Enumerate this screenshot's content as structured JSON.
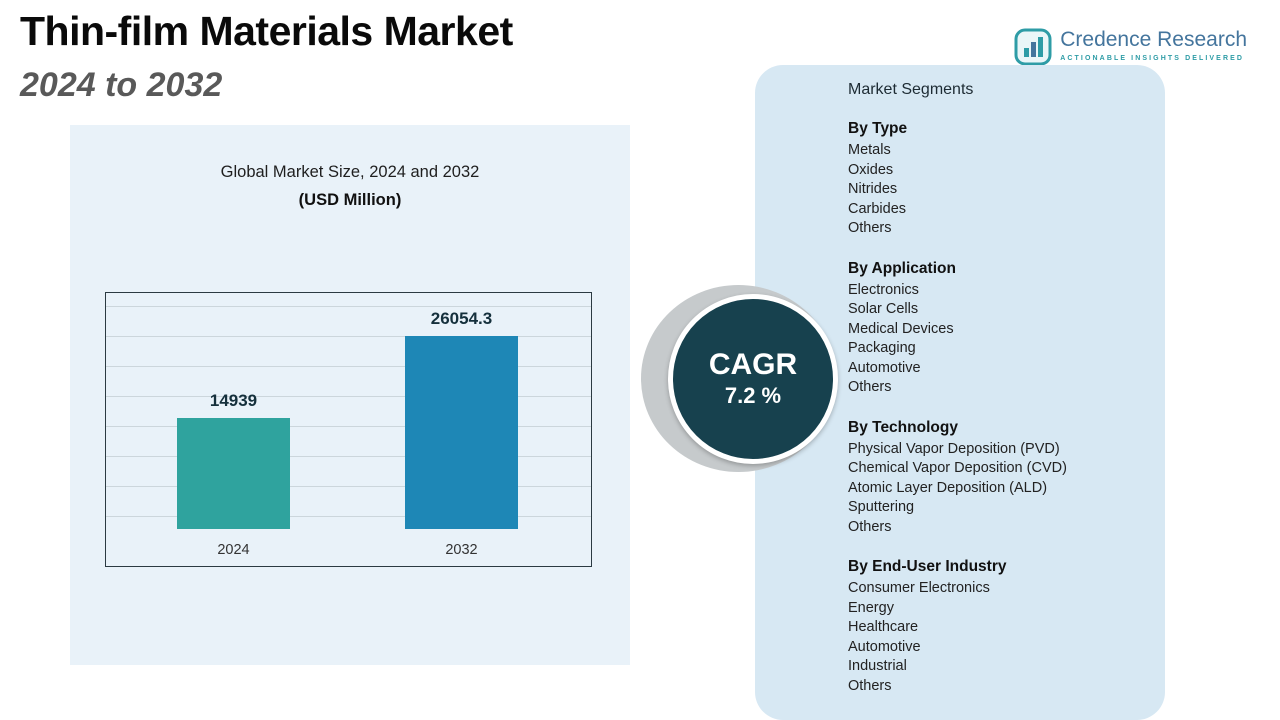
{
  "header": {
    "title": "Thin-film Materials Market",
    "subtitle": "2024 to 2032"
  },
  "logo": {
    "name": "Credence Research",
    "tagline": "Actionable Insights Delivered"
  },
  "chart_data": {
    "type": "bar",
    "title": "Global Market Size, 2024 and 2032",
    "subtitle": "(USD Million)",
    "categories": [
      "2024",
      "2032"
    ],
    "values": [
      14939,
      26054.3
    ],
    "bar_colors": [
      "#2fa39e",
      "#1e87b6"
    ],
    "ylabel": "USD Million",
    "xlabel": "",
    "ylim": [
      0,
      26054.3
    ],
    "grid": true,
    "legend": false
  },
  "cagr": {
    "label": "CAGR",
    "value": "7.2 %"
  },
  "segments": {
    "title": "Market Segments",
    "sections": [
      {
        "title": "By Type",
        "items": [
          "Metals",
          "Oxides",
          "Nitrides",
          "Carbides",
          "Others"
        ]
      },
      {
        "title": "By Application",
        "items": [
          "Electronics",
          "Solar Cells",
          "Medical Devices",
          "Packaging",
          "Automotive",
          "Others"
        ]
      },
      {
        "title": "By Technology",
        "items": [
          "Physical Vapor Deposition (PVD)",
          "Chemical Vapor Deposition (CVD)",
          "Atomic Layer Deposition (ALD)",
          "Sputtering",
          "Others"
        ]
      },
      {
        "title": "By End-User Industry",
        "items": [
          "Consumer Electronics",
          "Energy",
          "Healthcare",
          "Automotive",
          "Industrial",
          "Others"
        ]
      }
    ]
  }
}
